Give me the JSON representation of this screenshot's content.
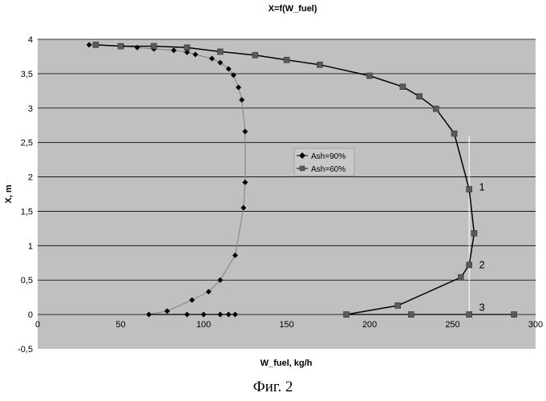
{
  "caption": "Фиг. 2",
  "chart_data": {
    "type": "scatter",
    "title": "X=f(W_fuel)",
    "xlabel": "W_fuel, kg/h",
    "ylabel": "X, m",
    "xlim": [
      0,
      300
    ],
    "ylim": [
      -0.5,
      4
    ],
    "x_ticks": [
      "0",
      "50",
      "100",
      "150",
      "200",
      "250",
      "300"
    ],
    "y_ticks": [
      "-0,5",
      "0",
      "0,5",
      "1",
      "1,5",
      "2",
      "2,5",
      "3",
      "3,5",
      "4"
    ],
    "x_tick_values": [
      0,
      50,
      100,
      150,
      200,
      250,
      300
    ],
    "y_tick_values": [
      -0.5,
      0,
      0.5,
      1,
      1.5,
      2,
      2.5,
      3,
      3.5,
      4
    ],
    "grid": "horizontal",
    "legend_position": "center",
    "colors": {
      "plot_bg": "#c0c0c0",
      "series_90": "#000000",
      "series_60": "#5a5a5a",
      "annotation_line": "#ffffff"
    },
    "series": [
      {
        "name": "Ash=90%",
        "marker": "diamond",
        "points": [
          [
            31,
            3.92
          ],
          [
            51,
            3.9
          ],
          [
            60,
            3.88
          ],
          [
            70,
            3.86
          ],
          [
            82,
            3.84
          ],
          [
            90,
            3.81
          ],
          [
            95,
            3.78
          ],
          [
            105,
            3.72
          ],
          [
            110,
            3.66
          ],
          [
            115,
            3.57
          ],
          [
            118,
            3.48
          ],
          [
            121,
            3.3
          ],
          [
            123,
            3.12
          ],
          [
            125,
            2.66
          ],
          [
            125,
            1.92
          ],
          [
            124,
            1.55
          ],
          [
            119,
            0.86
          ],
          [
            110,
            0.5
          ],
          [
            103,
            0.33
          ],
          [
            93,
            0.21
          ],
          [
            78,
            0.05
          ],
          [
            67,
            0
          ],
          [
            90,
            0
          ],
          [
            100,
            0
          ],
          [
            110,
            0
          ],
          [
            115,
            0
          ],
          [
            119,
            0
          ]
        ]
      },
      {
        "name": "Ash=60%",
        "marker": "square",
        "points": [
          [
            35,
            3.92
          ],
          [
            50,
            3.9
          ],
          [
            70,
            3.9
          ],
          [
            90,
            3.88
          ],
          [
            110,
            3.82
          ],
          [
            131,
            3.77
          ],
          [
            150,
            3.7
          ],
          [
            170,
            3.63
          ],
          [
            200,
            3.47
          ],
          [
            220,
            3.31
          ],
          [
            230,
            3.17
          ],
          [
            240,
            2.99
          ],
          [
            251,
            2.63
          ],
          [
            260,
            1.82
          ],
          [
            263,
            1.18
          ],
          [
            260,
            0.72
          ],
          [
            255,
            0.54
          ],
          [
            217,
            0.13
          ],
          [
            186,
            0
          ],
          [
            225,
            0
          ],
          [
            260,
            0
          ],
          [
            287,
            0
          ]
        ]
      }
    ],
    "annotations": [
      {
        "text": "1",
        "x": 265,
        "y": 1.85
      },
      {
        "text": "2",
        "x": 265,
        "y": 0.72
      },
      {
        "text": "3",
        "x": 265,
        "y": 0.1
      }
    ],
    "reference_line": {
      "x": 260,
      "y_from": 0,
      "y_to": 2.6
    }
  }
}
